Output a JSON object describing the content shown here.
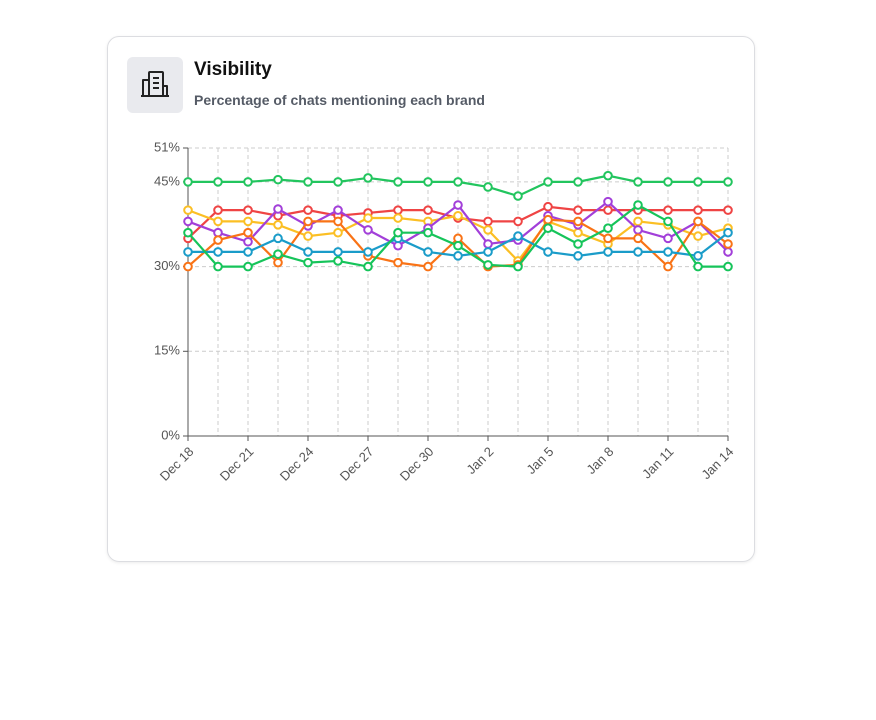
{
  "title": "Visibility",
  "subtitle": "Percentage of chats mentioning each brand",
  "chart_data": {
    "type": "line",
    "categories": [
      "Dec 18",
      null,
      "Dec 21",
      null,
      "Dec 24",
      null,
      "Dec 27",
      null,
      "Dec 30",
      null,
      "Jan 2",
      null,
      "Jan 5",
      null,
      "Jan 8",
      null,
      "Jan 11",
      null,
      "Jan 14"
    ],
    "ylim": [
      0,
      51
    ],
    "yticks": [
      {
        "value": 0,
        "label": "0%"
      },
      {
        "value": 15,
        "label": "15%"
      },
      {
        "value": 30,
        "label": "30%"
      },
      {
        "value": 45,
        "label": "45%"
      },
      {
        "value": 51,
        "label": "51%"
      }
    ],
    "grid": true,
    "series": [
      {
        "color": "#22c55e",
        "values": [
          45,
          45,
          45,
          45.4,
          45,
          45,
          45.7,
          45,
          45,
          45,
          44.1,
          42.5,
          45,
          45,
          46.1,
          45,
          45,
          45,
          45
        ]
      },
      {
        "color": "#ef4444",
        "values": [
          35,
          40,
          40,
          39,
          40,
          39,
          39.5,
          40,
          40,
          38.6,
          38,
          38,
          40.6,
          40,
          40,
          40,
          40,
          40,
          40
        ]
      },
      {
        "color": "#fbbf24",
        "values": [
          40,
          38,
          38,
          37.4,
          35.4,
          36,
          38.6,
          38.6,
          38,
          39,
          36.5,
          31,
          38,
          36,
          34,
          38,
          37.4,
          35.4,
          36.8
        ]
      },
      {
        "color": "#a23fd9",
        "values": [
          38,
          36,
          34.4,
          40.2,
          37.2,
          40,
          36.5,
          33.7,
          36.8,
          40.9,
          34,
          34.7,
          39,
          37.4,
          41.5,
          36.5,
          35,
          38,
          32.6
        ]
      },
      {
        "color": "#f97316",
        "values": [
          30,
          34.7,
          36,
          30.7,
          38,
          38,
          31.9,
          30.7,
          30,
          35,
          30,
          30.3,
          38.3,
          38,
          35,
          35,
          30,
          38,
          34
        ]
      },
      {
        "color": "#1a9cc9",
        "values": [
          32.6,
          32.6,
          32.6,
          35,
          32.6,
          32.6,
          32.6,
          35,
          32.6,
          31.9,
          32.6,
          35.4,
          32.6,
          31.9,
          32.6,
          32.6,
          32.6,
          31.9,
          36
        ]
      },
      {
        "color": "#16c45a",
        "values": [
          36,
          30,
          30,
          32.2,
          30.7,
          31,
          30,
          36,
          36,
          33.7,
          30.3,
          30,
          36.8,
          34,
          36.8,
          40.9,
          38,
          30,
          30
        ]
      }
    ]
  }
}
